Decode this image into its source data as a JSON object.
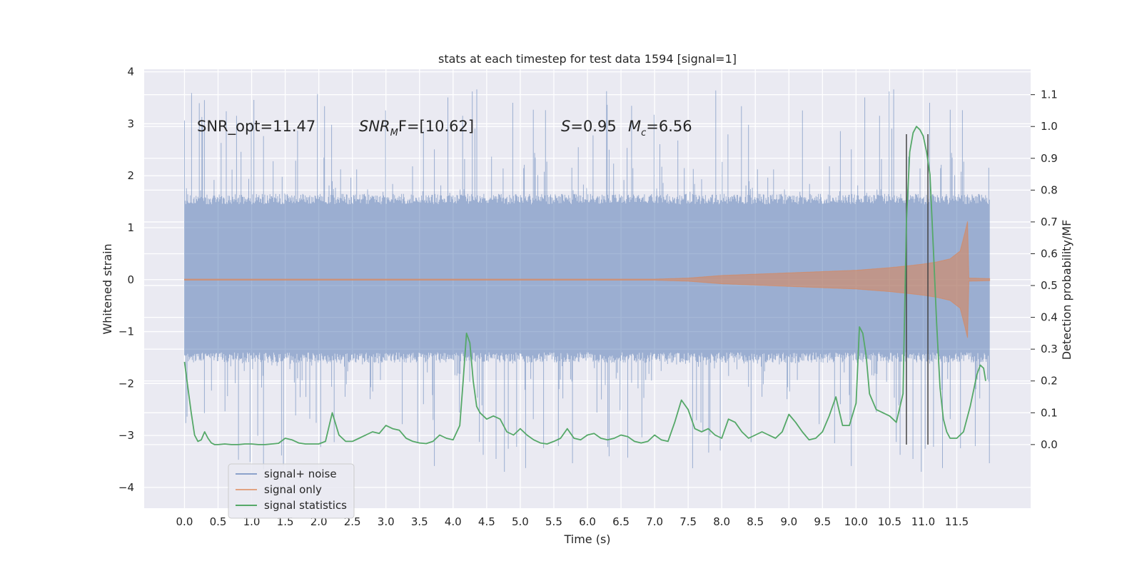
{
  "chart_data": {
    "type": "line",
    "title": "stats at each timestep for test data 1594 [signal=1]",
    "xlabel": "Time (s)",
    "ylabel": "Whitened strain",
    "ylabel_right": "Detection probability/MF",
    "xlim": [
      -0.6,
      12.6
    ],
    "ylim": [
      -4.4,
      4.05
    ],
    "ylim_right": [
      -0.2,
      1.18
    ],
    "x_ticks": [
      "0.0",
      "0.5",
      "1.0",
      "1.5",
      "2.0",
      "2.5",
      "3.0",
      "3.5",
      "4.0",
      "4.5",
      "5.0",
      "5.5",
      "6.0",
      "6.5",
      "7.0",
      "7.5",
      "8.0",
      "8.5",
      "9.0",
      "9.5",
      "10.0",
      "10.5",
      "11.0",
      "11.5"
    ],
    "y_ticks": [
      "4",
      "3",
      "2",
      "1",
      "0",
      "−1",
      "−2",
      "−3",
      "−4"
    ],
    "y_ticks_right": [
      "1.1",
      "1.0",
      "0.9",
      "0.8",
      "0.7",
      "0.6",
      "0.5",
      "0.4",
      "0.3",
      "0.2",
      "0.1",
      "0.0"
    ],
    "grid": true,
    "legend_position": "lower-left",
    "annotations": {
      "snr_opt": "SNR_opt=11.47",
      "snr_mf_main": "SNR",
      "snr_mf_sub": "M",
      "snr_mf_rest": "F=[10.62]",
      "s_main": "S",
      "s_rest": "=0.95",
      "mc_main": "M",
      "mc_sub": "c",
      "mc_rest": "=6.56"
    },
    "vertical_markers_x": [
      10.75,
      11.07
    ],
    "series": [
      {
        "name": "signal+ noise",
        "color": "#4c72b0",
        "axis": "left",
        "x_range": [
          0.0,
          11.99
        ],
        "typical_amplitude": 1.55,
        "peak_amplitude": 4.1
      },
      {
        "name": "signal only",
        "color": "#dd8452",
        "axis": "left",
        "x": [
          0.0,
          7.0,
          7.5,
          8.0,
          9.0,
          10.0,
          10.5,
          10.8,
          11.0,
          11.2,
          11.4,
          11.55,
          11.62,
          11.66,
          11.68,
          11.99
        ],
        "envelope": [
          0.01,
          0.01,
          0.03,
          0.08,
          0.13,
          0.18,
          0.23,
          0.27,
          0.3,
          0.34,
          0.4,
          0.55,
          0.9,
          1.12,
          0.03,
          0.02
        ]
      },
      {
        "name": "signal statistics",
        "color": "#55a868",
        "axis": "right",
        "x": [
          0.0,
          0.05,
          0.1,
          0.15,
          0.2,
          0.25,
          0.3,
          0.35,
          0.4,
          0.45,
          0.5,
          0.6,
          0.7,
          0.8,
          0.9,
          1.0,
          1.1,
          1.2,
          1.3,
          1.4,
          1.5,
          1.6,
          1.7,
          1.8,
          1.9,
          2.0,
          2.1,
          2.2,
          2.3,
          2.4,
          2.5,
          2.6,
          2.7,
          2.8,
          2.9,
          3.0,
          3.1,
          3.2,
          3.3,
          3.4,
          3.5,
          3.6,
          3.7,
          3.8,
          3.9,
          4.0,
          4.1,
          4.15,
          4.2,
          4.25,
          4.3,
          4.35,
          4.4,
          4.5,
          4.6,
          4.7,
          4.8,
          4.9,
          5.0,
          5.1,
          5.2,
          5.3,
          5.4,
          5.5,
          5.6,
          5.7,
          5.8,
          5.9,
          6.0,
          6.1,
          6.2,
          6.3,
          6.4,
          6.5,
          6.6,
          6.7,
          6.8,
          6.9,
          7.0,
          7.1,
          7.2,
          7.3,
          7.4,
          7.5,
          7.6,
          7.7,
          7.8,
          7.9,
          8.0,
          8.1,
          8.2,
          8.3,
          8.4,
          8.5,
          8.6,
          8.7,
          8.8,
          8.9,
          9.0,
          9.1,
          9.2,
          9.3,
          9.4,
          9.5,
          9.6,
          9.7,
          9.8,
          9.9,
          10.0,
          10.05,
          10.1,
          10.15,
          10.2,
          10.3,
          10.4,
          10.5,
          10.6,
          10.7,
          10.75,
          10.8,
          10.85,
          10.9,
          10.95,
          11.0,
          11.05,
          11.1,
          11.15,
          11.2,
          11.25,
          11.3,
          11.35,
          11.4,
          11.5,
          11.6,
          11.7,
          11.8,
          11.85,
          11.9,
          11.93
        ],
        "values": [
          0.26,
          0.18,
          0.1,
          0.03,
          0.01,
          0.015,
          0.04,
          0.02,
          0.005,
          0.0,
          0.0,
          0.002,
          0.0,
          0.0,
          0.002,
          0.002,
          0.0,
          0.0,
          0.002,
          0.004,
          0.02,
          0.015,
          0.005,
          0.002,
          0.002,
          0.002,
          0.01,
          0.1,
          0.03,
          0.01,
          0.01,
          0.02,
          0.03,
          0.04,
          0.035,
          0.06,
          0.05,
          0.045,
          0.02,
          0.01,
          0.005,
          0.003,
          0.01,
          0.03,
          0.02,
          0.015,
          0.06,
          0.2,
          0.35,
          0.32,
          0.2,
          0.12,
          0.1,
          0.08,
          0.09,
          0.08,
          0.04,
          0.03,
          0.05,
          0.03,
          0.015,
          0.005,
          0.002,
          0.01,
          0.02,
          0.05,
          0.02,
          0.015,
          0.03,
          0.035,
          0.02,
          0.015,
          0.02,
          0.03,
          0.025,
          0.01,
          0.005,
          0.01,
          0.03,
          0.015,
          0.01,
          0.07,
          0.14,
          0.11,
          0.05,
          0.04,
          0.05,
          0.03,
          0.02,
          0.08,
          0.07,
          0.04,
          0.02,
          0.03,
          0.04,
          0.03,
          0.02,
          0.04,
          0.095,
          0.07,
          0.04,
          0.015,
          0.02,
          0.04,
          0.09,
          0.15,
          0.06,
          0.06,
          0.13,
          0.37,
          0.35,
          0.28,
          0.16,
          0.11,
          0.1,
          0.09,
          0.07,
          0.16,
          0.7,
          0.92,
          0.98,
          1.0,
          0.99,
          0.97,
          0.92,
          0.85,
          0.62,
          0.38,
          0.18,
          0.08,
          0.04,
          0.02,
          0.02,
          0.04,
          0.12,
          0.22,
          0.25,
          0.24,
          0.2
        ]
      }
    ]
  }
}
